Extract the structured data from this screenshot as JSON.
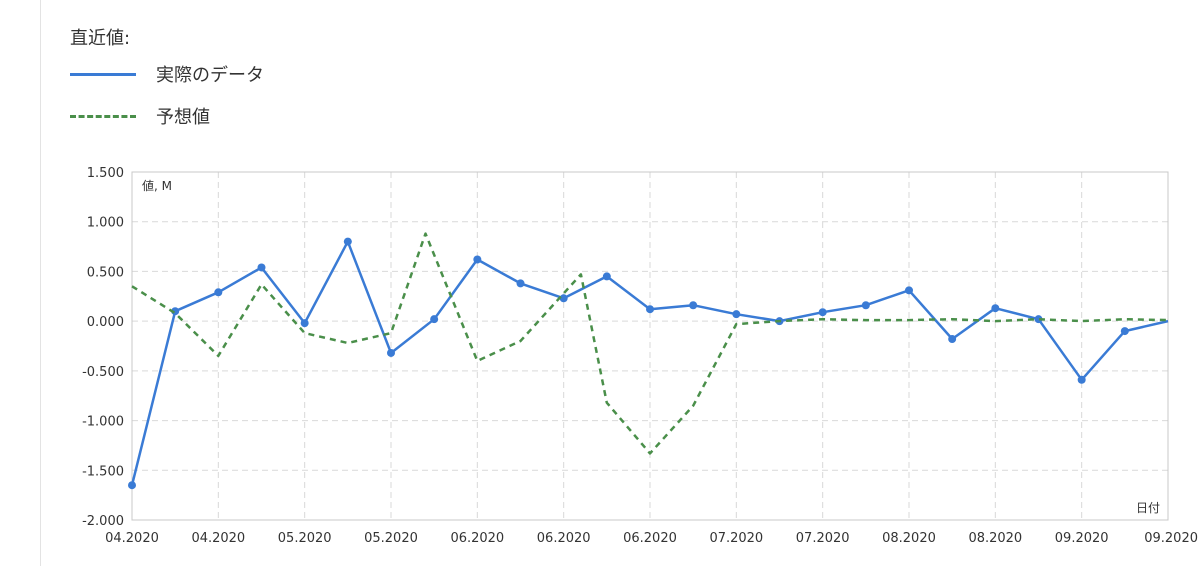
{
  "legend": {
    "title": "直近値:",
    "items": [
      {
        "label": "実際のデータ",
        "color": "#3a7bd5",
        "style": "solid"
      },
      {
        "label": "予想値",
        "color": "#4a8f4a",
        "style": "dashed"
      }
    ]
  },
  "chart_data": {
    "type": "line",
    "ylabel": "値, M",
    "xlabel": "日付",
    "ylim": [
      -2.0,
      1.5
    ],
    "x_range": [
      0,
      24
    ],
    "yticks": [
      "1.500",
      "1.000",
      "0.500",
      "0.000",
      "-0.500",
      "-1.000",
      "-1.500",
      "-2.000"
    ],
    "ytick_values": [
      1.5,
      1.0,
      0.5,
      0.0,
      -0.5,
      -1.0,
      -1.5,
      -2.0
    ],
    "xtick_labels": [
      "04.2020",
      "04.2020",
      "05.2020",
      "05.2020",
      "06.2020",
      "06.2020",
      "06.2020",
      "07.2020",
      "07.2020",
      "08.2020",
      "08.2020",
      "09.2020",
      "09.2020"
    ],
    "grid": true,
    "series": [
      {
        "name": "実際のデータ",
        "color": "#3a7bd5",
        "style": "solid",
        "markers": true,
        "x": [
          0,
          1,
          2,
          3,
          4,
          5,
          6,
          7,
          8,
          9,
          10,
          11,
          12,
          13,
          14,
          15,
          16,
          17,
          18,
          19,
          20,
          21,
          22,
          23,
          24
        ],
        "values": [
          -1.65,
          0.1,
          0.29,
          0.54,
          -0.02,
          0.8,
          -0.32,
          0.02,
          0.62,
          0.38,
          0.23,
          0.45,
          0.12,
          0.16,
          0.07,
          0.0,
          0.09,
          0.16,
          0.31,
          -0.18,
          0.13,
          0.02,
          -0.59,
          -0.1,
          0.0
        ]
      },
      {
        "name": "予想値",
        "color": "#4a8f4a",
        "style": "dashed",
        "markers": false,
        "x": [
          0,
          1,
          2,
          3,
          4,
          5,
          6,
          6.8,
          8,
          9,
          10.4,
          11,
          12,
          13,
          14,
          15,
          16,
          17,
          18,
          19,
          20,
          21,
          22,
          23,
          24
        ],
        "values": [
          0.35,
          0.08,
          -0.35,
          0.37,
          -0.12,
          -0.22,
          -0.12,
          0.88,
          -0.4,
          -0.2,
          0.47,
          -0.82,
          -1.33,
          -0.85,
          -0.03,
          0.0,
          0.02,
          0.01,
          0.01,
          0.02,
          0.0,
          0.02,
          0.0,
          0.02,
          0.01
        ]
      }
    ]
  }
}
